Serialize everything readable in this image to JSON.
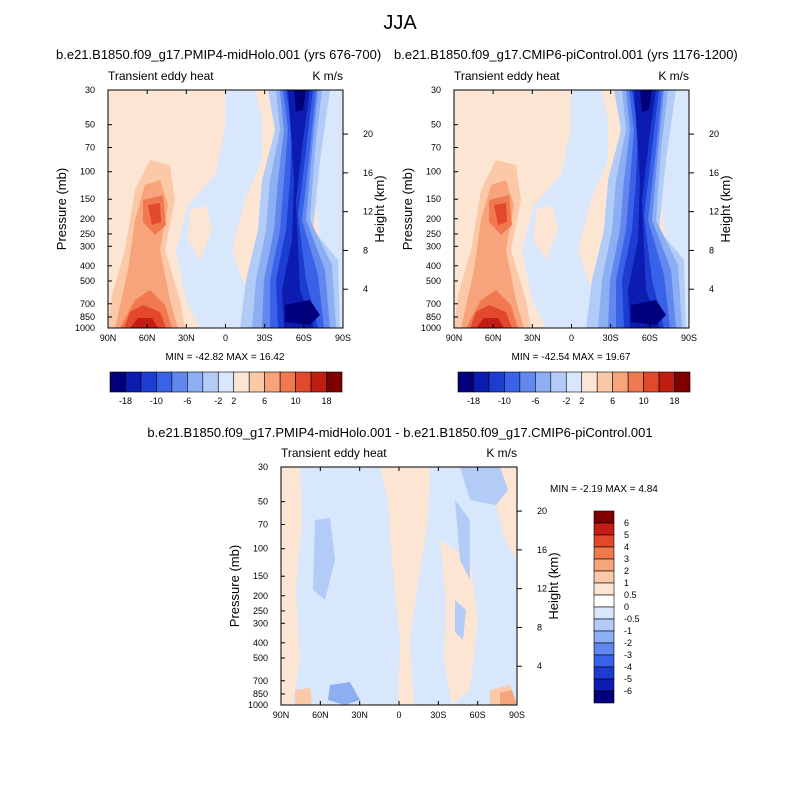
{
  "title": "JJA",
  "panel_subtitles": [
    "b.e21.B1850.f09_g17.PMIP4-midHolo.001 (yrs 676-700)",
    "b.e21.B1850.f09_g17.CMIP6-piControl.001 (yrs 1176-1200)",
    "b.e21.B1850.f09_g17.PMIP4-midHolo.001 - b.e21.B1850.f09_g17.CMIP6-piControl.001"
  ],
  "chart_data": [
    {
      "type": "heatmap",
      "subtitle": "b.e21.B1850.f09_g17.PMIP4-midHolo.001 (yrs 676-700)",
      "left_label": "Transient eddy heat",
      "right_label": "K m/s",
      "ylabel": "Pressure (mb)",
      "y2label": "Height (km)",
      "x_ticks": [
        "90N",
        "60N",
        "30N",
        "0",
        "30S",
        "60S",
        "90S"
      ],
      "y_ticks": [
        "30",
        "50",
        "70",
        "100",
        "150",
        "200",
        "250",
        "300",
        "400",
        "500",
        "700",
        "850",
        "1000"
      ],
      "y2_ticks": [
        "20",
        "16",
        "12",
        "8",
        "4"
      ],
      "min_max": "MIN = -42.82  MAX =  16.42",
      "colorbar_labels": [
        "-18",
        "-10",
        "-6",
        "-2",
        "2",
        "6",
        "10",
        "18"
      ],
      "colors": [
        "#00007c",
        "#0c1bb0",
        "#1c3cd2",
        "#3a62e8",
        "#6287ef",
        "#8caff4",
        "#b3ccf7",
        "#d8e7fb",
        "#fde5d3",
        "#fbc9a8",
        "#f7a47c",
        "#f17950",
        "#e1482c",
        "#c21d12",
        "#800000"
      ]
    },
    {
      "type": "heatmap",
      "subtitle": "b.e21.B1850.f09_g17.CMIP6-piControl.001 (yrs 1176-1200)",
      "left_label": "Transient eddy heat",
      "right_label": "K m/s",
      "ylabel": "Pressure (mb)",
      "y2label": "Height (km)",
      "x_ticks": [
        "90N",
        "60N",
        "30N",
        "0",
        "30S",
        "60S",
        "90S"
      ],
      "y_ticks": [
        "30",
        "50",
        "70",
        "100",
        "150",
        "200",
        "250",
        "300",
        "400",
        "500",
        "700",
        "850",
        "1000"
      ],
      "y2_ticks": [
        "20",
        "16",
        "12",
        "8",
        "4"
      ],
      "min_max": "MIN = -42.54  MAX =  19.67",
      "colorbar_labels": [
        "-18",
        "-10",
        "-6",
        "-2",
        "2",
        "6",
        "10",
        "18"
      ],
      "colors": [
        "#00007c",
        "#0c1bb0",
        "#1c3cd2",
        "#3a62e8",
        "#6287ef",
        "#8caff4",
        "#b3ccf7",
        "#d8e7fb",
        "#fde5d3",
        "#fbc9a8",
        "#f7a47c",
        "#f17950",
        "#e1482c",
        "#c21d12",
        "#800000"
      ]
    },
    {
      "type": "heatmap",
      "subtitle": "b.e21.B1850.f09_g17.PMIP4-midHolo.001 - b.e21.B1850.f09_g17.CMIP6-piControl.001",
      "left_label": "Transient eddy heat",
      "right_label": "K m/s",
      "ylabel": "Pressure (mb)",
      "y2label": "Height (km)",
      "x_ticks": [
        "90N",
        "60N",
        "30N",
        "0",
        "30S",
        "60S",
        "90S"
      ],
      "y_ticks": [
        "30",
        "50",
        "70",
        "100",
        "150",
        "200",
        "250",
        "300",
        "400",
        "500",
        "700",
        "850",
        "1000"
      ],
      "y2_ticks": [
        "20",
        "16",
        "12",
        "8",
        "4"
      ],
      "min_max": "MIN =  -2.19  MAX =   4.84",
      "colorbar_labels": [
        "6",
        "5",
        "4",
        "3",
        "2",
        "1",
        "0.5",
        "0",
        "-0.5",
        "-1",
        "-2",
        "-3",
        "-4",
        "-5",
        "-6"
      ],
      "colors": [
        "#800000",
        "#c21d12",
        "#e1482c",
        "#f17950",
        "#f7a47c",
        "#fbc9a8",
        "#fde5d3",
        "#ffffff",
        "#d8e7fb",
        "#b3ccf7",
        "#8caff4",
        "#6287ef",
        "#3a62e8",
        "#1c3cd2",
        "#0c1bb0",
        "#00007c"
      ]
    }
  ]
}
